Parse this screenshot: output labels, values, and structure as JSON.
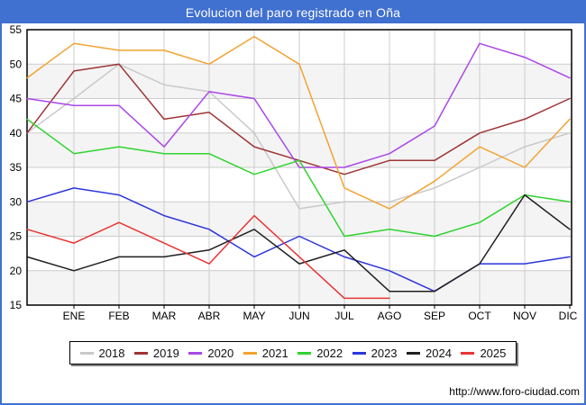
{
  "window": {
    "title": "Evolucion del paro registrado en Oña"
  },
  "footer": {
    "url": "http://www.foro-ciudad.com"
  },
  "colors": {
    "frame_blue": "#4070d0",
    "band_gray": "#f4f4f4",
    "gridline_gray": "#cccccc",
    "axis_black": "#000000"
  },
  "chart_data": {
    "type": "line",
    "title": "Evolucion del paro registrado en Oña",
    "x_labels": [
      "ENE",
      "FEB",
      "MAR",
      "ABR",
      "MAY",
      "JUN",
      "JUL",
      "AGO",
      "SEP",
      "OCT",
      "NOV",
      "DIC"
    ],
    "first_point_at_axis": true,
    "ylim": [
      15,
      55
    ],
    "y_ticks": [
      15,
      20,
      25,
      30,
      35,
      40,
      45,
      50,
      55
    ],
    "grid": true,
    "alternating_bands": true,
    "legend_position": "bottom",
    "series": [
      {
        "name": "2018",
        "color": "#c9c9c9",
        "values": [
          40,
          45,
          50,
          47,
          46,
          40,
          29,
          30,
          30,
          32,
          35,
          38,
          40
        ]
      },
      {
        "name": "2019",
        "color": "#9e3434",
        "values": [
          40,
          49,
          50,
          42,
          43,
          38,
          36,
          34,
          36,
          36,
          40,
          42,
          45
        ]
      },
      {
        "name": "2020",
        "color": "#ab47e6",
        "values": [
          45,
          44,
          44,
          38,
          46,
          45,
          35,
          35,
          37,
          41,
          53,
          51,
          48
        ]
      },
      {
        "name": "2021",
        "color": "#f2a332",
        "values": [
          48,
          53,
          52,
          52,
          50,
          54,
          50,
          32,
          29,
          33,
          38,
          35,
          42
        ]
      },
      {
        "name": "2022",
        "color": "#2fd32f",
        "values": [
          42,
          37,
          38,
          37,
          37,
          34,
          36,
          25,
          26,
          25,
          27,
          31,
          30
        ]
      },
      {
        "name": "2023",
        "color": "#2d35d9",
        "values": [
          30,
          32,
          31,
          28,
          26,
          22,
          25,
          22,
          20,
          17,
          21,
          21,
          22
        ]
      },
      {
        "name": "2024",
        "color": "#1f1f1f",
        "values": [
          22,
          20,
          22,
          22,
          23,
          26,
          21,
          23,
          17,
          17,
          21,
          31,
          26
        ]
      },
      {
        "name": "2025",
        "color": "#e93434",
        "values": [
          26,
          24,
          27,
          24,
          21,
          28,
          22,
          16,
          16
        ]
      }
    ]
  }
}
